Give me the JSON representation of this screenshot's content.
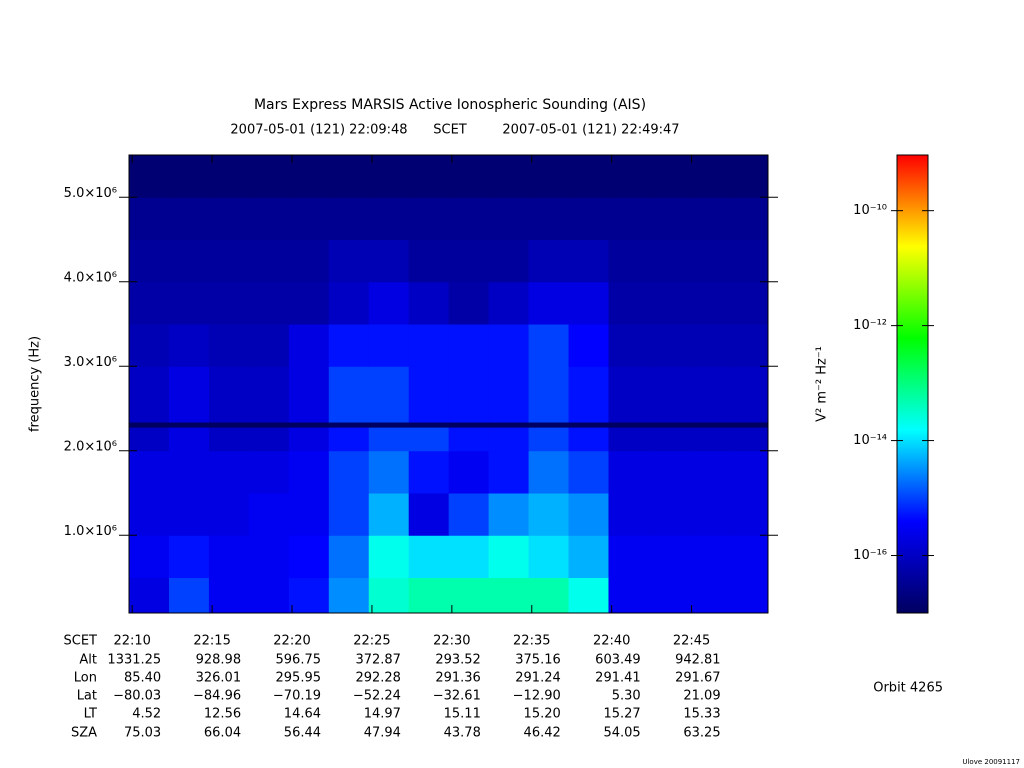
{
  "chart_data": {
    "type": "heatmap",
    "title": "Mars Express MARSIS Active Ionospheric Sounding (AIS)",
    "subtitle_start": "2007-05-01 (121) 22:09:48",
    "subtitle_mid": "SCET",
    "subtitle_end": "2007-05-01 (121) 22:49:47",
    "ylabel": "frequency (Hz)",
    "colorbar_label": "V² m⁻² Hz⁻¹",
    "xlim": [
      9.8,
      49.78
    ],
    "xticks": [
      {
        "value": 10,
        "label": "22:10"
      },
      {
        "value": 15,
        "label": "22:15"
      },
      {
        "value": 20,
        "label": "22:20"
      },
      {
        "value": 25,
        "label": "22:25"
      },
      {
        "value": 30,
        "label": "22:30"
      },
      {
        "value": 35,
        "label": "22:35"
      },
      {
        "value": 40,
        "label": "22:40"
      },
      {
        "value": 45,
        "label": "22:45"
      }
    ],
    "ylim": [
      80000,
      5500000
    ],
    "yticks": [
      {
        "value": 1000000,
        "label": "1.0×10⁶"
      },
      {
        "value": 2000000,
        "label": "2.0×10⁶"
      },
      {
        "value": 3000000,
        "label": "3.0×10⁶"
      },
      {
        "value": 4000000,
        "label": "4.0×10⁶"
      },
      {
        "value": 5000000,
        "label": "5.0×10⁶"
      }
    ],
    "x_bins": [
      9.8,
      12.3,
      14.8,
      17.3,
      19.8,
      22.3,
      24.8,
      27.3,
      29.8,
      32.3,
      34.8,
      37.3,
      39.8,
      42.3,
      44.8,
      47.3,
      49.78
    ],
    "y_bins": [
      80000,
      500000,
      1000000,
      1500000,
      2000000,
      2280000,
      2340000,
      3000000,
      3500000,
      4000000,
      4500000,
      5000000,
      5500000
    ],
    "z": [
      [
        2e-16,
        1e-15,
        3e-16,
        3e-16,
        5e-16,
        3e-15,
        3e-14,
        5e-14,
        5e-14,
        5e-14,
        5e-14,
        2e-14,
        3e-16,
        3e-16,
        3e-16,
        3e-16
      ],
      [
        3e-16,
        5e-16,
        3e-16,
        3e-16,
        4e-16,
        2e-15,
        2e-14,
        1e-14,
        1e-14,
        2e-14,
        1e-14,
        5e-15,
        3e-16,
        3e-16,
        3e-16,
        3e-16
      ],
      [
        2e-16,
        2e-16,
        2e-16,
        3e-16,
        3e-16,
        1e-15,
        5e-15,
        2e-16,
        1e-15,
        3e-15,
        5e-15,
        3e-15,
        2e-16,
        2e-16,
        2e-16,
        2e-16
      ],
      [
        2e-16,
        2e-16,
        2e-16,
        2e-16,
        3e-16,
        1e-15,
        2e-15,
        5e-16,
        3e-16,
        5e-16,
        2e-15,
        1e-15,
        2e-16,
        2e-16,
        2e-16,
        2e-16
      ],
      [
        1e-16,
        2e-16,
        1e-16,
        1e-16,
        2e-16,
        5e-16,
        1e-15,
        1e-15,
        5e-16,
        5e-16,
        1e-15,
        5e-16,
        1e-16,
        1e-16,
        1e-16,
        1e-16
      ],
      [
        1e-17,
        1e-17,
        1e-17,
        1e-17,
        1e-17,
        1e-17,
        1e-17,
        1e-17,
        1e-17,
        1e-17,
        1e-17,
        1e-17,
        1e-17,
        1e-17,
        1e-17,
        1e-17
      ],
      [
        1e-16,
        2e-16,
        1e-16,
        1e-16,
        2e-16,
        1e-15,
        1e-15,
        5e-16,
        5e-16,
        5e-16,
        1e-15,
        5e-16,
        1e-16,
        1e-16,
        1e-16,
        1e-16
      ],
      [
        7e-17,
        1e-16,
        7e-17,
        7e-17,
        2e-16,
        5e-16,
        5e-16,
        5e-16,
        5e-16,
        5e-16,
        1e-15,
        4e-16,
        7e-17,
        7e-17,
        7e-17,
        7e-17
      ],
      [
        5e-17,
        5e-17,
        5e-17,
        5e-17,
        5e-17,
        1e-16,
        2e-16,
        1e-16,
        5e-17,
        1e-16,
        2e-16,
        2e-16,
        5e-17,
        5e-17,
        5e-17,
        5e-17
      ],
      [
        4e-17,
        4e-17,
        4e-17,
        4e-17,
        4e-17,
        7e-17,
        7e-17,
        4e-17,
        4e-17,
        4e-17,
        7e-17,
        7e-17,
        4e-17,
        4e-17,
        4e-17,
        4e-17
      ],
      [
        3e-17,
        3e-17,
        3e-17,
        3e-17,
        3e-17,
        3e-17,
        3e-17,
        3e-17,
        3e-17,
        3e-17,
        3e-17,
        3e-17,
        3e-17,
        3e-17,
        3e-17,
        3e-17
      ],
      [
        1.5e-17,
        1.5e-17,
        1.5e-17,
        1.5e-17,
        1.5e-17,
        1.5e-17,
        1.5e-17,
        1.5e-17,
        1.5e-17,
        1.5e-17,
        1.5e-17,
        1.5e-17,
        1.5e-17,
        1.5e-17,
        1.5e-17,
        1.5e-17
      ]
    ],
    "log_z": true,
    "zlim": [
      1e-17,
      9.3e-10
    ],
    "zticks": [
      {
        "value": 1e-16,
        "label": "10⁻¹⁶"
      },
      {
        "value": 1e-14,
        "label": "10⁻¹⁴"
      },
      {
        "value": 1e-12,
        "label": "10⁻¹²"
      },
      {
        "value": 1e-10,
        "label": "10⁻¹⁰"
      }
    ],
    "colors": [
      "#000060",
      "#0000ff",
      "#00ffff",
      "#00ff00",
      "#ffff00",
      "#ff0000"
    ],
    "ephemeris": {
      "labels": [
        "SCET",
        "Alt",
        "Lon",
        "Lat",
        "LT",
        "SZA"
      ],
      "rows": [
        [
          "1331.25",
          "928.98",
          "596.75",
          "372.87",
          "293.52",
          "375.16",
          "603.49",
          "942.81"
        ],
        [
          "85.40",
          "326.01",
          "295.95",
          "292.28",
          "291.36",
          "291.24",
          "291.41",
          "291.67"
        ],
        [
          "−80.03",
          "−84.96",
          "−70.19",
          "−52.24",
          "−32.61",
          "−12.90",
          "5.30",
          "21.09"
        ],
        [
          "4.52",
          "12.56",
          "14.64",
          "14.97",
          "15.11",
          "15.20",
          "15.27",
          "15.33"
        ],
        [
          "75.03",
          "66.04",
          "56.44",
          "47.94",
          "43.78",
          "46.42",
          "54.05",
          "63.25"
        ]
      ]
    },
    "orbit": "Orbit 4265",
    "credit": "Ulove 20091117"
  }
}
